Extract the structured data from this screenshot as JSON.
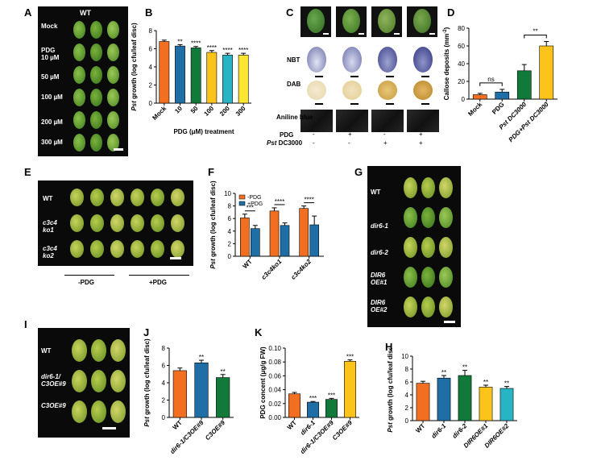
{
  "panels": {
    "A": "A",
    "B": "B",
    "C": "C",
    "D": "D",
    "E": "E",
    "F": "F",
    "G": "G",
    "H": "H",
    "I": "I",
    "J": "J",
    "K": "K"
  },
  "panelA": {
    "header": "WT",
    "rows": [
      "Mock",
      "PDG\n10 µM",
      "50 µM",
      "100 µM",
      "200 µM",
      "300 µM"
    ]
  },
  "panelC": {
    "rows": [
      "NBT",
      "DAB",
      "Aniline blue"
    ],
    "pdg_label": "PDG",
    "pst_label_italic": "Pst",
    "pst_label_rest": " DC3000",
    "pdg_signs": [
      "-",
      "+",
      "-",
      "+"
    ],
    "pst_signs": [
      "-",
      "-",
      "+",
      "+"
    ]
  },
  "panelE": {
    "rows": [
      "WT",
      "c3c4\nko1",
      "c3c4\nko2"
    ],
    "groups": [
      "-PDG",
      "+PDG"
    ]
  },
  "panelG": {
    "rows": [
      "WT",
      "dir6-1",
      "dir6-2",
      "DIR6\nOE#1",
      "DIR6\nOE#2"
    ]
  },
  "panelI": {
    "rows": [
      "WT",
      "dir6-1/\nC3OE#9",
      "C3OE#9"
    ]
  },
  "colors": {
    "orange": "#f26f22",
    "blue": "#1f6ea5",
    "green": "#117a3b",
    "yellow": "#fcc31a",
    "teal": "#29b4c6",
    "navy": "#1f4f7a",
    "dark": "#333333"
  },
  "chart_data": [
    {
      "id": "B",
      "type": "bar",
      "xlabel": "PDG (μM) treatment",
      "ylabel_italic": "Pst",
      "ylabel": " growth (log cfu/leaf disc)",
      "ylim": [
        0,
        8
      ],
      "yticks": [
        0,
        2,
        4,
        6,
        8
      ],
      "categories": [
        "Mock",
        "10",
        "50",
        "100",
        "200",
        "300"
      ],
      "values": [
        6.8,
        6.3,
        6.1,
        5.6,
        5.3,
        5.3
      ],
      "errors": [
        0.15,
        0.15,
        0.15,
        0.2,
        0.2,
        0.2
      ],
      "sig": [
        "",
        "**",
        "****",
        "****",
        "****",
        "****"
      ],
      "colors": [
        "#f26f22",
        "#1f6ea5",
        "#117a3b",
        "#fcc31a",
        "#29b4c6",
        "#fce632"
      ]
    },
    {
      "id": "D",
      "type": "bar",
      "ylabel": "Callose deposits (mm",
      "ylabel_sup": "-2",
      "ylabel_end": ")",
      "ylim": [
        0,
        80
      ],
      "yticks": [
        0,
        20,
        40,
        60,
        80
      ],
      "categories": [
        "Mock",
        "PDG",
        "Pst DC3000",
        "PDG+Pst DC3000"
      ],
      "values": [
        5,
        8,
        32,
        60
      ],
      "errors": [
        1.5,
        3,
        7,
        5
      ],
      "colors": [
        "#f26f22",
        "#1f6ea5",
        "#117a3b",
        "#fcc31a"
      ],
      "brackets": [
        {
          "from": 0,
          "to": 1,
          "label": "ns"
        },
        {
          "from": 2,
          "to": 3,
          "label": "**"
        }
      ]
    },
    {
      "id": "F",
      "type": "bar",
      "ylabel_italic": "Pst",
      "ylabel": " growth (log cfu/leaf disc)",
      "ylim": [
        0,
        10
      ],
      "yticks": [
        0,
        2,
        4,
        6,
        8,
        10
      ],
      "categories": [
        "WT",
        "c3c4ko1",
        "c3c4ko2"
      ],
      "series": [
        {
          "name": "-PDG",
          "values": [
            6.1,
            7.2,
            7.6
          ],
          "errors": [
            0.6,
            0.5,
            0.4
          ],
          "color": "#f26f22"
        },
        {
          "name": "+PDG",
          "values": [
            4.4,
            4.9,
            5.0
          ],
          "errors": [
            0.5,
            0.4,
            1.4
          ],
          "color": "#1f6ea5"
        }
      ],
      "sig": [
        "***",
        "****",
        "****"
      ],
      "legend_position": "top-left"
    },
    {
      "id": "J",
      "type": "bar",
      "ylabel_italic": "Pst",
      "ylabel": " growth (log cfu/leaf disc)",
      "ylim": [
        0,
        8
      ],
      "yticks": [
        0,
        2,
        4,
        6,
        8
      ],
      "categories": [
        "WT",
        "dir6-1/C3OE#9",
        "C3OE#9"
      ],
      "values": [
        5.4,
        6.3,
        4.6
      ],
      "errors": [
        0.3,
        0.3,
        0.35
      ],
      "sig": [
        "",
        "**",
        "**"
      ],
      "colors": [
        "#f26f22",
        "#1f6ea5",
        "#117a3b"
      ]
    },
    {
      "id": "K",
      "type": "bar",
      "ylabel": "PDG concent (μg/g FW)",
      "ylim": [
        0,
        0.1
      ],
      "yticks": [
        0,
        0.02,
        0.04,
        0.06,
        0.08,
        0.1
      ],
      "ytick_labels": [
        "0.00",
        "0.02",
        "0.04",
        "0.06",
        "0.08",
        "0.10"
      ],
      "categories": [
        "WT",
        "dir6-1",
        "dir6-1/C3OE#9",
        "C3OE#9"
      ],
      "values": [
        0.034,
        0.022,
        0.026,
        0.081
      ],
      "errors": [
        0.002,
        0.001,
        0.0015,
        0.002
      ],
      "sig": [
        "",
        "***",
        "***",
        "***"
      ],
      "colors": [
        "#f26f22",
        "#1f6ea5",
        "#117a3b",
        "#fcc31a"
      ]
    },
    {
      "id": "H",
      "type": "bar",
      "ylabel_italic": "Pst",
      "ylabel": " growth (log cfu/leaf disc)",
      "ylim": [
        0,
        10
      ],
      "yticks": [
        0,
        2,
        4,
        6,
        8,
        10
      ],
      "categories": [
        "WT",
        "dir6-1",
        "dir6-2",
        "DIR6OE#1",
        "DIR6OE#2"
      ],
      "values": [
        5.8,
        6.6,
        7.0,
        5.2,
        5.0
      ],
      "errors": [
        0.3,
        0.4,
        0.8,
        0.3,
        0.3
      ],
      "sig": [
        "",
        "**",
        "**",
        "**",
        "**"
      ],
      "colors": [
        "#f26f22",
        "#1f6ea5",
        "#117a3b",
        "#fcc31a",
        "#29b4c6"
      ]
    }
  ]
}
